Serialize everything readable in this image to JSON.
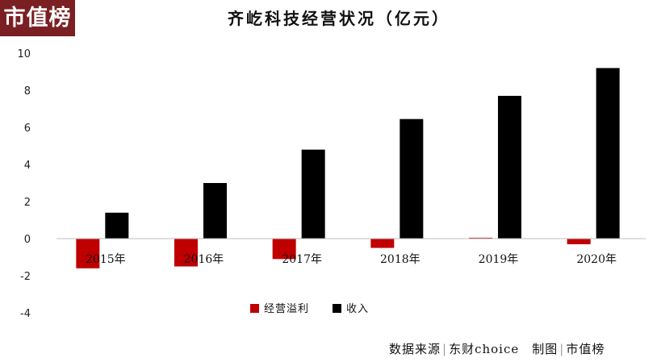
{
  "brand": {
    "logo_text": "市值榜"
  },
  "footer": {
    "source_label": "数据来源",
    "source_value": "东财choice",
    "made_label": "制图",
    "made_value": "市值榜",
    "separator": "|"
  },
  "colors": {
    "profit": "#c00000",
    "revenue": "#000000",
    "axis": "#bfbfbf"
  },
  "chart_data": {
    "type": "bar",
    "title": "齐屹科技经营状况（亿元）",
    "categories": [
      "2015年",
      "2016年",
      "2017年",
      "2018年",
      "2019年",
      "2020年"
    ],
    "series": [
      {
        "name": "经营溢利",
        "color": "#c00000",
        "values": [
          -1.6,
          -1.5,
          -1.1,
          -0.5,
          0.05,
          -0.3
        ]
      },
      {
        "name": "收入",
        "color": "#000000",
        "values": [
          1.4,
          3.0,
          4.8,
          6.45,
          7.7,
          9.2
        ]
      }
    ],
    "yticks": [
      10,
      8,
      6,
      4,
      2,
      0,
      -2,
      -4
    ],
    "ylim": [
      -4,
      10
    ],
    "xlabel": "",
    "ylabel": "",
    "legend_position": "bottom-center",
    "grid": false
  }
}
